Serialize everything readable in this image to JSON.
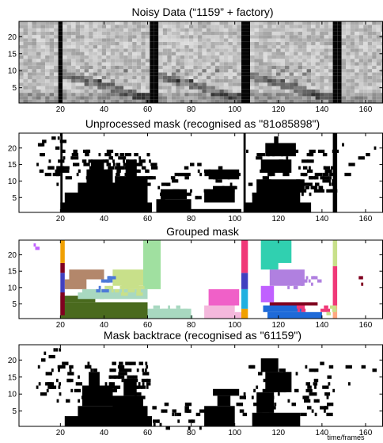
{
  "figure": {
    "panels": [
      {
        "id": "noisy",
        "title": "Noisy Data (“1159” + factory)"
      },
      {
        "id": "unprocessed",
        "title": "Unprocessed mask (recognised as \"81o85898\")"
      },
      {
        "id": "grouped",
        "title": "Grouped mask"
      },
      {
        "id": "backtrace",
        "title": "Mask backtrace (recognised as \"61159\")"
      }
    ],
    "x_axis_label": "time/frames"
  },
  "chart_data": [
    {
      "type": "heatmap",
      "title": "Noisy Data (“1159” + factory)",
      "xlim": [
        1,
        168
      ],
      "ylim": [
        0.5,
        24.5
      ],
      "x_ticks": [
        20,
        40,
        60,
        80,
        100,
        120,
        140,
        160
      ],
      "y_ticks": [
        5,
        10,
        15,
        20
      ],
      "colormap": "gray",
      "dark_vertical_bands_frames": [
        [
          19,
          20
        ],
        [
          62,
          64
        ],
        [
          103,
          105
        ],
        [
          145,
          147
        ]
      ],
      "speech_regions_frames": [
        [
          20,
          62
        ],
        [
          64,
          103
        ],
        [
          105,
          145
        ]
      ]
    },
    {
      "type": "heatmap",
      "title": "Unprocessed mask (recognised as \"81o85898\")",
      "xlim": [
        1,
        168
      ],
      "ylim": [
        0.5,
        24.5
      ],
      "x_ticks": [
        20,
        40,
        60,
        80,
        100,
        120,
        140,
        160
      ],
      "y_ticks": [
        5,
        10,
        15,
        20
      ],
      "colormap": "binary"
    },
    {
      "type": "heatmap",
      "title": "Grouped mask",
      "xlim": [
        1,
        168
      ],
      "ylim": [
        0.5,
        24.5
      ],
      "x_ticks": [
        20,
        40,
        60,
        80,
        100,
        120,
        140,
        160
      ],
      "y_ticks": [
        5,
        10,
        15,
        20
      ],
      "colormap": "categorical",
      "group_colors": [
        "#4a6a1e",
        "#b3876b",
        "#a8d8c0",
        "#c8e08a",
        "#4d7ad8",
        "#f060c8",
        "#f4b8dc",
        "#1e6ad8",
        "#b080e0",
        "#30d0b0",
        "#f03878",
        "#f0a000",
        "#4040c0",
        "#800020",
        "#c060ff",
        "#a0e0a0",
        "#ffa880",
        "#20b0e0"
      ]
    },
    {
      "type": "heatmap",
      "title": "Mask backtrace (recognised as \"61159\")",
      "xlim": [
        1,
        168
      ],
      "ylim": [
        0.5,
        24.5
      ],
      "x_ticks": [
        20,
        40,
        60,
        80,
        100,
        120,
        140,
        160
      ],
      "y_ticks": [
        5,
        10,
        15,
        20
      ],
      "xlabel": "time/frames",
      "colormap": "binary"
    }
  ]
}
